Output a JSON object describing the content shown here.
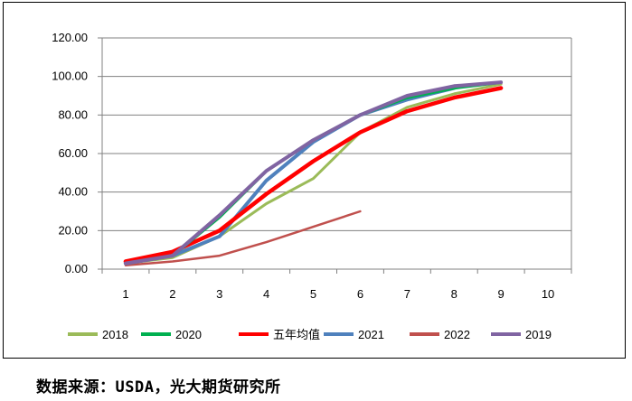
{
  "chart_data": {
    "type": "line",
    "title": "",
    "xlabel": "",
    "ylabel": "",
    "x": [
      1,
      2,
      3,
      4,
      5,
      6,
      7,
      8,
      9,
      10
    ],
    "x_tick_labels": [
      "1",
      "2",
      "3",
      "4",
      "5",
      "6",
      "7",
      "8",
      "9",
      "10"
    ],
    "y_tick_labels": [
      "0.00",
      "20.00",
      "40.00",
      "60.00",
      "80.00",
      "100.00",
      "120.00"
    ],
    "ylim": [
      0,
      120
    ],
    "xlim": [
      1,
      10
    ],
    "grid": "horizontal",
    "legend_placement": "bottom",
    "series": [
      {
        "name": "2018",
        "color": "#9bbb59",
        "values": [
          3,
          6,
          17,
          34,
          47,
          71,
          84,
          91,
          96,
          null
        ]
      },
      {
        "name": "2020",
        "color": "#00b050",
        "values": [
          3,
          7,
          27,
          51,
          67,
          80,
          89,
          94,
          97,
          null
        ]
      },
      {
        "name": "五年均值",
        "color": "#ff0000",
        "values": [
          4,
          9,
          20,
          39,
          56,
          71,
          82,
          89,
          94,
          null
        ]
      },
      {
        "name": "2021",
        "color": "#4f81bd",
        "values": [
          3,
          7,
          17,
          46,
          66,
          80,
          88,
          94,
          null,
          null
        ]
      },
      {
        "name": "2022",
        "color": "#c0504d",
        "values": [
          2,
          4,
          7,
          14,
          22,
          30,
          null,
          null,
          null,
          null
        ]
      },
      {
        "name": "2019",
        "color": "#8064a2",
        "values": [
          3,
          7,
          28,
          51,
          67,
          80,
          90,
          95,
          97,
          null
        ]
      }
    ]
  },
  "source": "数据来源：USDA，光大期货研究所"
}
